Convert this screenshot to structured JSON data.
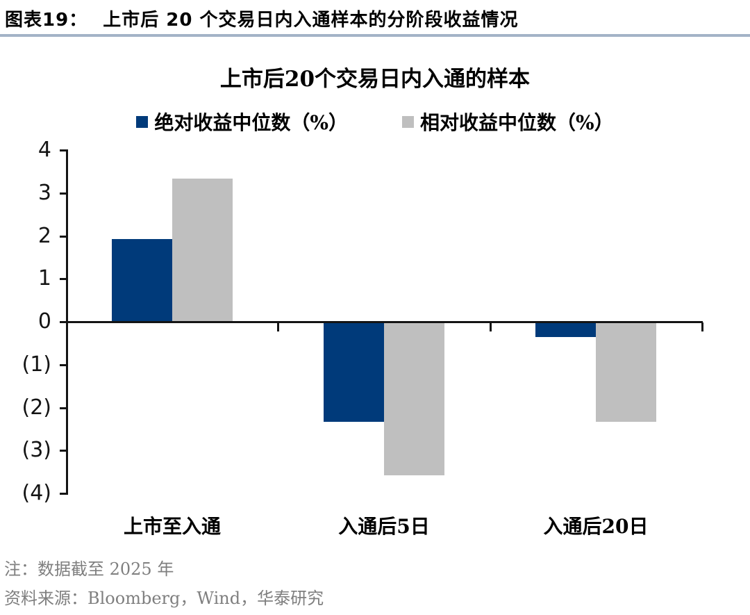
{
  "header": {
    "label": "图表19：",
    "title": "上市后 20 个交易日内入通样本的分阶段收益情况"
  },
  "footer": {
    "note": "注：数据截至 2025 年",
    "source": "资料来源：Bloomberg，Wind，华泰研究"
  },
  "colors": {
    "divider": "#a3b3c7",
    "axis": "#141414",
    "note_text": "#7f7f7f",
    "absolute_series": "#003a7a",
    "relative_series": "#bfbfbf"
  },
  "chart_data": {
    "type": "bar",
    "title": "上市后20个交易日内入通的样本",
    "categories": [
      "上市至入通",
      "入通后5日",
      "入通后20日"
    ],
    "series": [
      {
        "name": "绝对收益中位数（%）",
        "color": "#003a7a",
        "values": [
          1.92,
          -2.3,
          -0.33
        ]
      },
      {
        "name": "相对收益中位数（%）",
        "color": "#bfbfbf",
        "values": [
          3.33,
          -3.55,
          -2.3
        ]
      }
    ],
    "xlabel": "",
    "ylabel": "",
    "ylim": [
      -4,
      4
    ],
    "yticks": [
      4,
      3,
      2,
      1,
      0,
      -1,
      -2,
      -3,
      -4
    ],
    "ytick_labels": [
      "4",
      "3",
      "2",
      "1",
      "0",
      "(1)",
      "(2)",
      "(3)",
      "(4)"
    ],
    "grid": false,
    "legend_position": "top-center"
  }
}
